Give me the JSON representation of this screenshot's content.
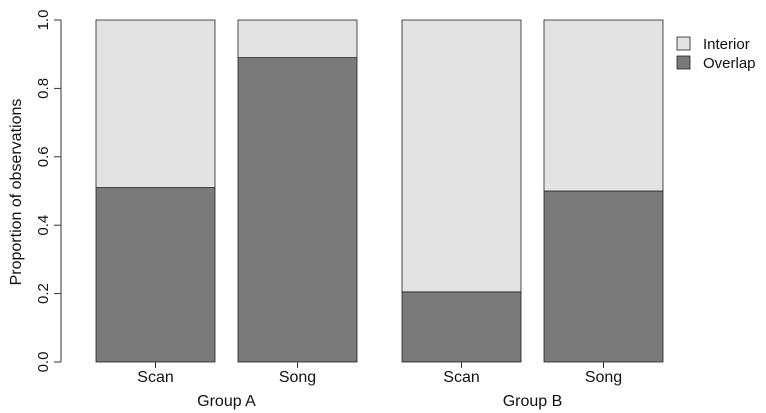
{
  "chart_data": {
    "type": "bar",
    "stacked": true,
    "title": "",
    "xlabel": "",
    "ylabel": "Proportion of observations",
    "ylim": [
      0,
      1
    ],
    "yticks": [
      "0.0",
      "0.2",
      "0.4",
      "0.6",
      "0.8",
      "1.0"
    ],
    "grid": false,
    "legend_position": "top-right",
    "categories": [
      "Scan",
      "Song",
      "Scan",
      "Song"
    ],
    "groups": [
      {
        "label": "Group A",
        "categories": [
          "Scan",
          "Song"
        ]
      },
      {
        "label": "Group B",
        "categories": [
          "Scan",
          "Song"
        ]
      }
    ],
    "series": [
      {
        "name": "Overlap",
        "color": "#7a7a7a",
        "values": [
          0.51,
          0.89,
          0.205,
          0.5
        ]
      },
      {
        "name": "Interior",
        "color": "#e3e3e3",
        "values": [
          0.49,
          0.11,
          0.795,
          0.5
        ]
      }
    ]
  }
}
